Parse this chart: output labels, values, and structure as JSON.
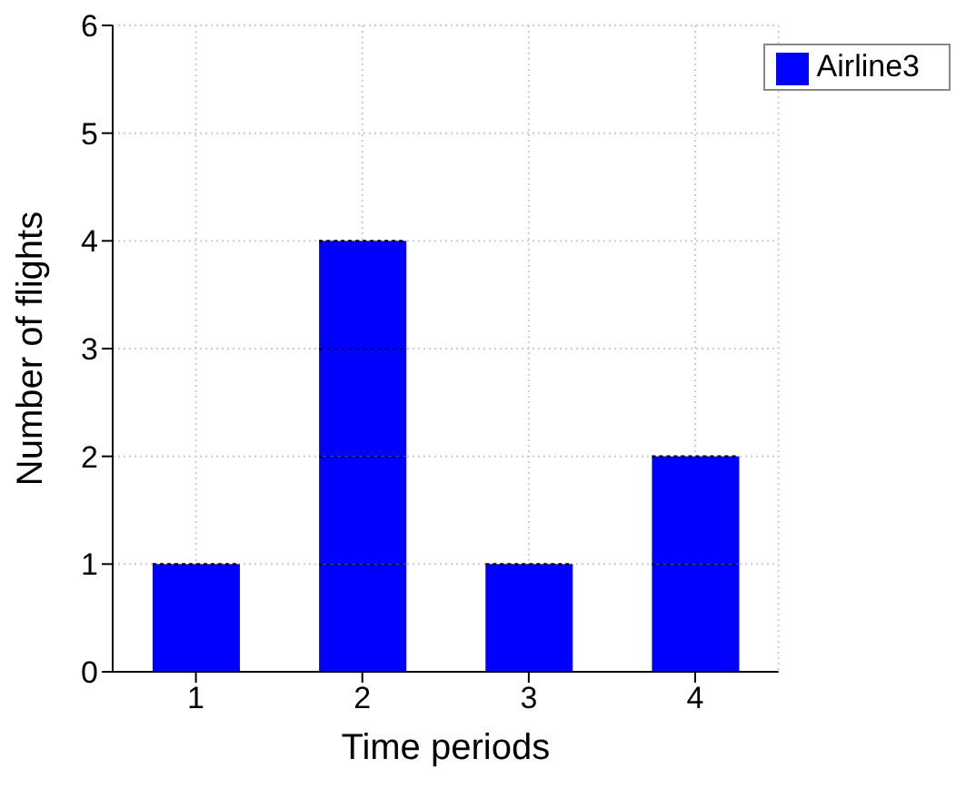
{
  "chart_data": {
    "type": "bar",
    "xlabel": "Time periods",
    "ylabel": "Number of flights",
    "categories": [
      "1",
      "2",
      "3",
      "4"
    ],
    "stacked": true,
    "series": [
      {
        "name": "Airline3",
        "color": "#0000ff",
        "values": [
          1,
          1,
          1,
          1
        ]
      },
      {
        "color": "#0000ff",
        "values": [
          null,
          1,
          null,
          1
        ]
      },
      {
        "color": "#0000ff",
        "values": [
          null,
          1,
          null,
          null
        ]
      },
      {
        "color": "#0000ff",
        "values": [
          null,
          1,
          null,
          null
        ]
      }
    ],
    "ylim": [
      0,
      6
    ],
    "yticks": [
      0,
      1,
      2,
      3,
      4,
      5,
      6
    ],
    "grid": true,
    "legend": "top right"
  }
}
